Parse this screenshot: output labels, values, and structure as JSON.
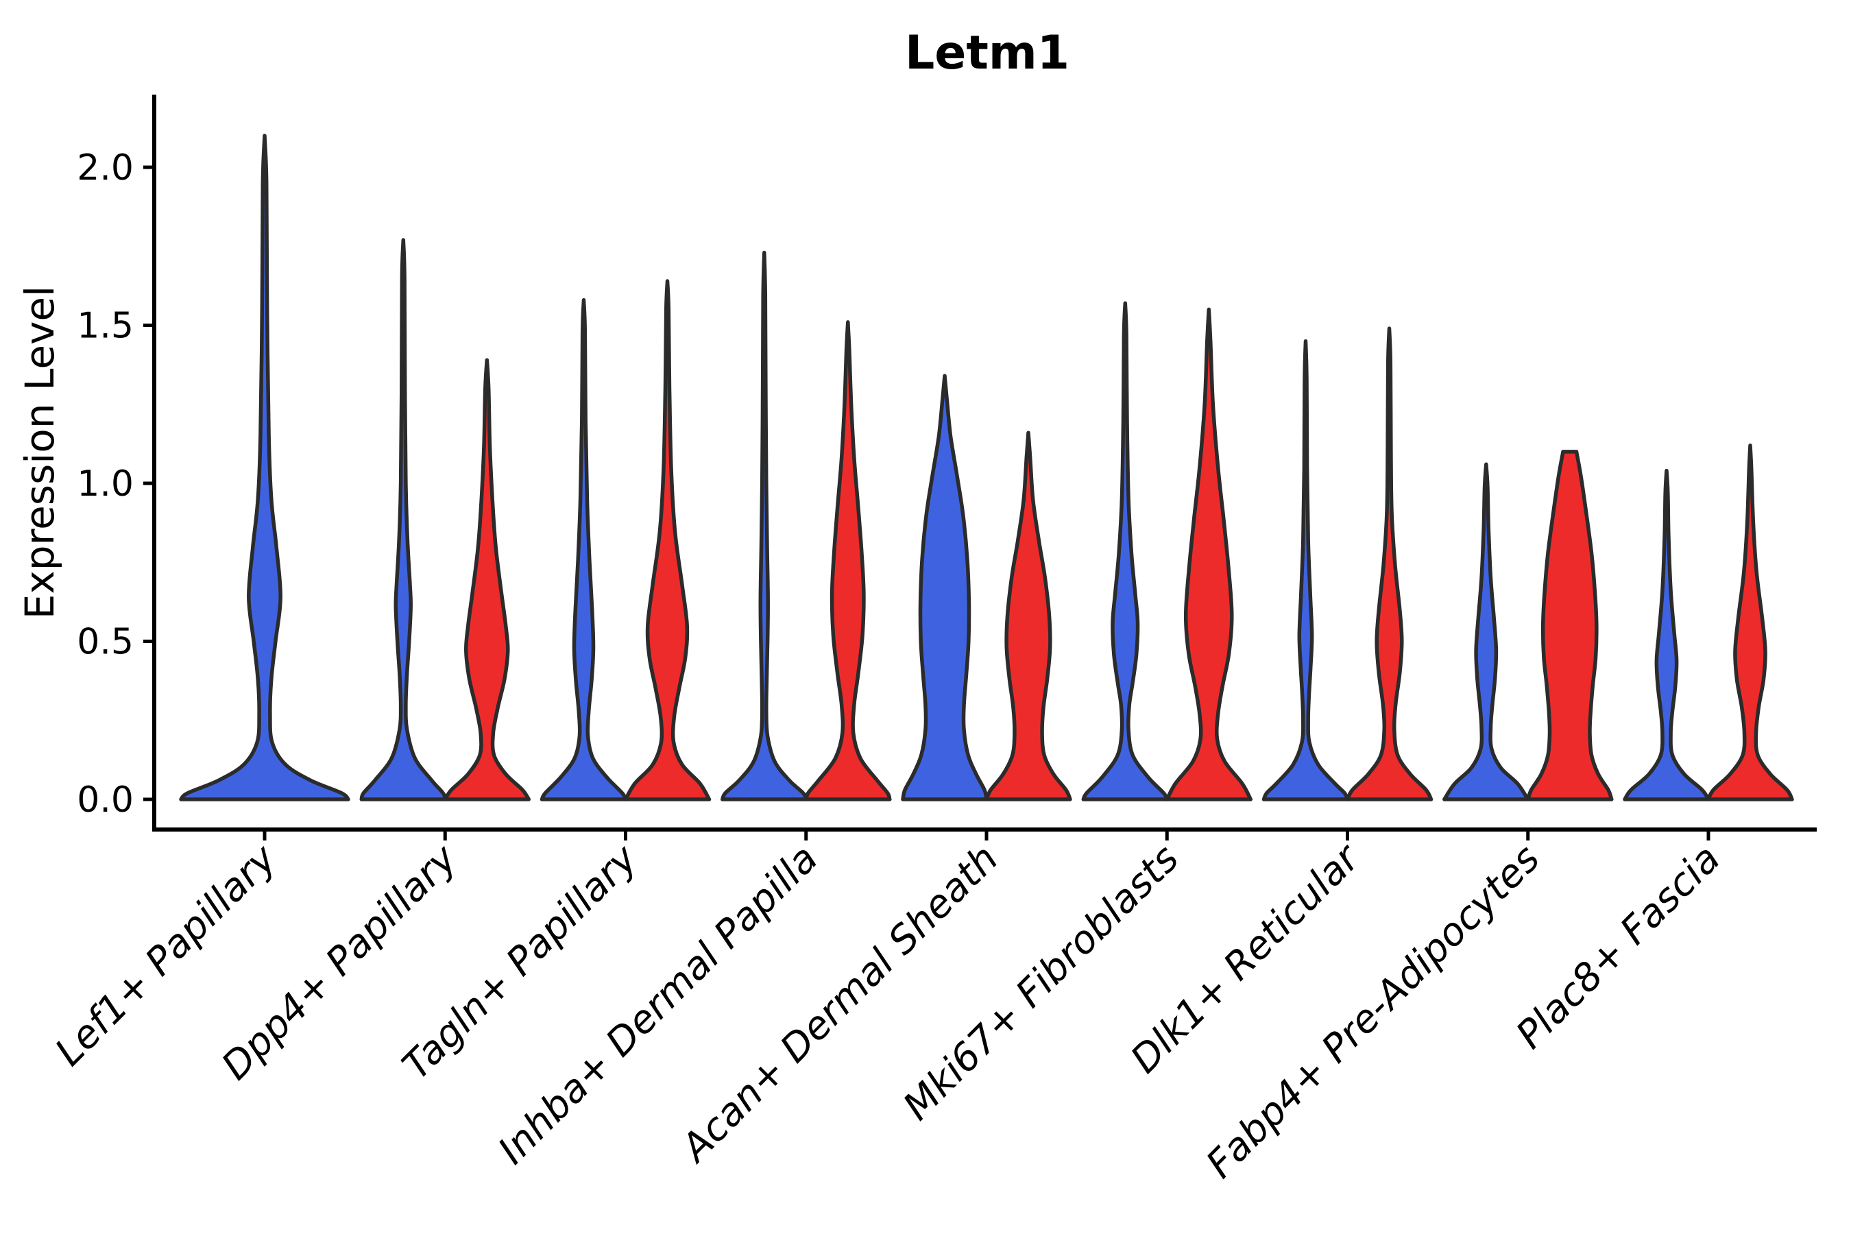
{
  "title": "Letm1",
  "y_axis": {
    "label": "Expression Level",
    "ticks": [
      "0.0",
      "0.5",
      "1.0",
      "1.5",
      "2.0"
    ],
    "tick_values": [
      0.0,
      0.5,
      1.0,
      1.5,
      2.0
    ]
  },
  "x_axis": {
    "categories": [
      "Lef1+ Papillary",
      "Dpp4+ Papillary",
      "Tagln+ Papillary",
      "Inhba+ Dermal Papilla",
      "Acan+ Dermal Sheath",
      "Mki67+ Fibroblasts",
      "Dlk1+ Reticular",
      "Fabp4+ Pre-Adipocytes",
      "Plac8+ Fascia"
    ]
  },
  "colors": {
    "group_blue": "#3F63E0",
    "group_red": "#EE2B2B",
    "violin_outline": "#2B2B2B",
    "axis": "#000000",
    "background": "#FFFFFF"
  },
  "chart_data": {
    "type": "violin",
    "title": "Letm1",
    "xlabel": "",
    "ylabel": "Expression Level",
    "ylim": [
      0,
      2.2
    ],
    "grid": false,
    "legend": "none",
    "categories": [
      "Lef1+ Papillary",
      "Dpp4+ Papillary",
      "Tagln+ Papillary",
      "Inhba+ Dermal Papilla",
      "Acan+ Dermal Sheath",
      "Mki67+ Fibroblasts",
      "Dlk1+ Reticular",
      "Fabp4+ Pre-Adipocytes",
      "Plac8+ Fascia"
    ],
    "groups": [
      "blue",
      "red"
    ],
    "note": "Split violin plot; each category has a blue (left) and red (right) density. Lef1+ Papillary shows a single full-width blue violin. width_profile = [expression_value, relative_half_width] pairs from tip to base; all densities peak in width at expression 0.",
    "violins": [
      {
        "category": "Lef1+ Papillary",
        "cat_index": 0,
        "group": "blue",
        "side": "center",
        "max_expression": 2.1,
        "width_profile": [
          [
            2.1,
            0
          ],
          [
            1.95,
            0.022
          ],
          [
            1.55,
            0.03
          ],
          [
            1.15,
            0.05
          ],
          [
            0.95,
            0.08
          ],
          [
            0.8,
            0.14
          ],
          [
            0.64,
            0.19
          ],
          [
            0.5,
            0.13
          ],
          [
            0.38,
            0.08
          ],
          [
            0.27,
            0.065
          ],
          [
            0.18,
            0.09
          ],
          [
            0.11,
            0.25
          ],
          [
            0.06,
            0.55
          ],
          [
            0.02,
            0.92
          ],
          [
            0,
            1
          ]
        ]
      },
      {
        "category": "Dpp4+ Papillary",
        "cat_index": 1,
        "group": "blue",
        "side": "left",
        "max_expression": 1.77,
        "width_profile": [
          [
            1.77,
            0
          ],
          [
            1.65,
            0.03
          ],
          [
            1.3,
            0.04
          ],
          [
            1.0,
            0.06
          ],
          [
            0.82,
            0.1
          ],
          [
            0.68,
            0.16
          ],
          [
            0.61,
            0.18
          ],
          [
            0.5,
            0.14
          ],
          [
            0.4,
            0.09
          ],
          [
            0.3,
            0.06
          ],
          [
            0.22,
            0.09
          ],
          [
            0.13,
            0.28
          ],
          [
            0.06,
            0.68
          ],
          [
            0.02,
            0.95
          ],
          [
            0,
            1
          ]
        ]
      },
      {
        "category": "Dpp4+ Papillary",
        "cat_index": 1,
        "group": "red",
        "side": "right",
        "max_expression": 1.39,
        "width_profile": [
          [
            1.39,
            0
          ],
          [
            1.3,
            0.04
          ],
          [
            1.12,
            0.07
          ],
          [
            0.95,
            0.13
          ],
          [
            0.8,
            0.21
          ],
          [
            0.66,
            0.34
          ],
          [
            0.55,
            0.45
          ],
          [
            0.47,
            0.5
          ],
          [
            0.38,
            0.42
          ],
          [
            0.29,
            0.26
          ],
          [
            0.21,
            0.15
          ],
          [
            0.14,
            0.17
          ],
          [
            0.08,
            0.45
          ],
          [
            0.03,
            0.85
          ],
          [
            0,
            1
          ]
        ]
      },
      {
        "category": "Tagln+ Papillary",
        "cat_index": 2,
        "group": "blue",
        "side": "left",
        "max_expression": 1.58,
        "width_profile": [
          [
            1.58,
            0
          ],
          [
            1.48,
            0.03
          ],
          [
            1.2,
            0.045
          ],
          [
            0.95,
            0.08
          ],
          [
            0.75,
            0.14
          ],
          [
            0.6,
            0.2
          ],
          [
            0.48,
            0.23
          ],
          [
            0.38,
            0.19
          ],
          [
            0.28,
            0.12
          ],
          [
            0.2,
            0.1
          ],
          [
            0.13,
            0.22
          ],
          [
            0.07,
            0.55
          ],
          [
            0.02,
            0.92
          ],
          [
            0,
            1
          ]
        ]
      },
      {
        "category": "Tagln+ Papillary",
        "cat_index": 2,
        "group": "red",
        "side": "right",
        "max_expression": 1.64,
        "width_profile": [
          [
            1.64,
            0
          ],
          [
            1.55,
            0.03
          ],
          [
            1.3,
            0.05
          ],
          [
            1.05,
            0.09
          ],
          [
            0.85,
            0.18
          ],
          [
            0.68,
            0.35
          ],
          [
            0.55,
            0.47
          ],
          [
            0.45,
            0.43
          ],
          [
            0.35,
            0.28
          ],
          [
            0.26,
            0.16
          ],
          [
            0.18,
            0.15
          ],
          [
            0.11,
            0.35
          ],
          [
            0.05,
            0.78
          ],
          [
            0,
            1
          ]
        ]
      },
      {
        "category": "Inhba+ Dermal Papilla",
        "cat_index": 3,
        "group": "blue",
        "side": "left",
        "max_expression": 1.73,
        "width_profile": [
          [
            1.73,
            0
          ],
          [
            1.6,
            0.025
          ],
          [
            1.3,
            0.035
          ],
          [
            1.0,
            0.05
          ],
          [
            0.8,
            0.07
          ],
          [
            0.63,
            0.09
          ],
          [
            0.5,
            0.08
          ],
          [
            0.38,
            0.06
          ],
          [
            0.28,
            0.05
          ],
          [
            0.2,
            0.08
          ],
          [
            0.12,
            0.25
          ],
          [
            0.06,
            0.6
          ],
          [
            0.02,
            0.93
          ],
          [
            0,
            1
          ]
        ]
      },
      {
        "category": "Inhba+ Dermal Papilla",
        "cat_index": 3,
        "group": "red",
        "side": "right",
        "max_expression": 1.51,
        "width_profile": [
          [
            1.51,
            0
          ],
          [
            1.42,
            0.035
          ],
          [
            1.25,
            0.08
          ],
          [
            1.08,
            0.15
          ],
          [
            0.92,
            0.25
          ],
          [
            0.78,
            0.33
          ],
          [
            0.65,
            0.38
          ],
          [
            0.52,
            0.35
          ],
          [
            0.4,
            0.25
          ],
          [
            0.3,
            0.15
          ],
          [
            0.21,
            0.13
          ],
          [
            0.13,
            0.3
          ],
          [
            0.06,
            0.7
          ],
          [
            0.02,
            0.95
          ],
          [
            0,
            1
          ]
        ]
      },
      {
        "category": "Acan+ Dermal Sheath",
        "cat_index": 4,
        "group": "blue",
        "side": "left",
        "max_expression": 1.34,
        "width_profile": [
          [
            1.34,
            0
          ],
          [
            1.27,
            0.05
          ],
          [
            1.15,
            0.14
          ],
          [
            1.02,
            0.3
          ],
          [
            0.9,
            0.44
          ],
          [
            0.76,
            0.54
          ],
          [
            0.62,
            0.58
          ],
          [
            0.5,
            0.57
          ],
          [
            0.4,
            0.52
          ],
          [
            0.3,
            0.46
          ],
          [
            0.22,
            0.46
          ],
          [
            0.14,
            0.56
          ],
          [
            0.08,
            0.75
          ],
          [
            0.03,
            0.95
          ],
          [
            0,
            1
          ]
        ]
      },
      {
        "category": "Acan+ Dermal Sheath",
        "cat_index": 4,
        "group": "red",
        "side": "right",
        "max_expression": 1.16,
        "width_profile": [
          [
            1.16,
            0
          ],
          [
            1.09,
            0.04
          ],
          [
            0.95,
            0.11
          ],
          [
            0.82,
            0.25
          ],
          [
            0.7,
            0.4
          ],
          [
            0.58,
            0.5
          ],
          [
            0.48,
            0.52
          ],
          [
            0.38,
            0.45
          ],
          [
            0.29,
            0.36
          ],
          [
            0.21,
            0.33
          ],
          [
            0.14,
            0.38
          ],
          [
            0.08,
            0.6
          ],
          [
            0.03,
            0.9
          ],
          [
            0,
            1
          ]
        ]
      },
      {
        "category": "Mki67+ Fibroblasts",
        "cat_index": 5,
        "group": "blue",
        "side": "left",
        "max_expression": 1.57,
        "width_profile": [
          [
            1.57,
            0
          ],
          [
            1.47,
            0.03
          ],
          [
            1.2,
            0.045
          ],
          [
            0.95,
            0.08
          ],
          [
            0.78,
            0.15
          ],
          [
            0.65,
            0.24
          ],
          [
            0.56,
            0.3
          ],
          [
            0.46,
            0.27
          ],
          [
            0.37,
            0.18
          ],
          [
            0.3,
            0.1
          ],
          [
            0.22,
            0.08
          ],
          [
            0.14,
            0.18
          ],
          [
            0.07,
            0.55
          ],
          [
            0.02,
            0.92
          ],
          [
            0,
            1
          ]
        ]
      },
      {
        "category": "Mki67+ Fibroblasts",
        "cat_index": 5,
        "group": "red",
        "side": "right",
        "max_expression": 1.55,
        "width_profile": [
          [
            1.55,
            0
          ],
          [
            1.45,
            0.04
          ],
          [
            1.25,
            0.1
          ],
          [
            1.05,
            0.22
          ],
          [
            0.88,
            0.36
          ],
          [
            0.72,
            0.48
          ],
          [
            0.58,
            0.55
          ],
          [
            0.46,
            0.48
          ],
          [
            0.36,
            0.33
          ],
          [
            0.27,
            0.22
          ],
          [
            0.19,
            0.2
          ],
          [
            0.12,
            0.38
          ],
          [
            0.05,
            0.8
          ],
          [
            0,
            1
          ]
        ]
      },
      {
        "category": "Dlk1+ Reticular",
        "cat_index": 6,
        "group": "blue",
        "side": "left",
        "max_expression": 1.45,
        "width_profile": [
          [
            1.45,
            0
          ],
          [
            1.33,
            0.025
          ],
          [
            1.05,
            0.035
          ],
          [
            0.82,
            0.06
          ],
          [
            0.65,
            0.11
          ],
          [
            0.52,
            0.15
          ],
          [
            0.42,
            0.12
          ],
          [
            0.33,
            0.08
          ],
          [
            0.25,
            0.06
          ],
          [
            0.18,
            0.09
          ],
          [
            0.11,
            0.3
          ],
          [
            0.05,
            0.7
          ],
          [
            0.02,
            0.93
          ],
          [
            0,
            1
          ]
        ]
      },
      {
        "category": "Dlk1+ Reticular",
        "cat_index": 6,
        "group": "red",
        "side": "right",
        "max_expression": 1.49,
        "width_profile": [
          [
            1.49,
            0
          ],
          [
            1.38,
            0.03
          ],
          [
            1.1,
            0.04
          ],
          [
            0.9,
            0.06
          ],
          [
            0.74,
            0.14
          ],
          [
            0.6,
            0.25
          ],
          [
            0.5,
            0.3
          ],
          [
            0.4,
            0.25
          ],
          [
            0.3,
            0.15
          ],
          [
            0.22,
            0.12
          ],
          [
            0.14,
            0.2
          ],
          [
            0.08,
            0.5
          ],
          [
            0.03,
            0.88
          ],
          [
            0,
            1
          ]
        ]
      },
      {
        "category": "Fabp4+ Pre-Adipocytes",
        "cat_index": 7,
        "group": "blue",
        "side": "left",
        "max_expression": 1.06,
        "width_profile": [
          [
            1.06,
            0
          ],
          [
            0.99,
            0.035
          ],
          [
            0.85,
            0.06
          ],
          [
            0.7,
            0.11
          ],
          [
            0.57,
            0.19
          ],
          [
            0.47,
            0.24
          ],
          [
            0.38,
            0.21
          ],
          [
            0.3,
            0.15
          ],
          [
            0.23,
            0.11
          ],
          [
            0.16,
            0.13
          ],
          [
            0.1,
            0.35
          ],
          [
            0.05,
            0.75
          ],
          [
            0,
            1
          ]
        ]
      },
      {
        "category": "Fabp4+ Pre-Adipocytes",
        "cat_index": 7,
        "group": "red",
        "side": "right",
        "max_expression": 1.1,
        "width_profile": [
          [
            1.1,
            0.16
          ],
          [
            1.02,
            0.27
          ],
          [
            0.9,
            0.4
          ],
          [
            0.78,
            0.52
          ],
          [
            0.66,
            0.6
          ],
          [
            0.55,
            0.64
          ],
          [
            0.45,
            0.62
          ],
          [
            0.36,
            0.55
          ],
          [
            0.28,
            0.5
          ],
          [
            0.21,
            0.48
          ],
          [
            0.14,
            0.52
          ],
          [
            0.08,
            0.68
          ],
          [
            0.03,
            0.92
          ],
          [
            0,
            1
          ]
        ]
      },
      {
        "category": "Plac8+ Fascia",
        "cat_index": 8,
        "group": "blue",
        "side": "left",
        "max_expression": 1.04,
        "width_profile": [
          [
            1.04,
            0
          ],
          [
            0.97,
            0.03
          ],
          [
            0.82,
            0.05
          ],
          [
            0.66,
            0.1
          ],
          [
            0.53,
            0.18
          ],
          [
            0.44,
            0.24
          ],
          [
            0.36,
            0.21
          ],
          [
            0.28,
            0.14
          ],
          [
            0.21,
            0.1
          ],
          [
            0.14,
            0.14
          ],
          [
            0.08,
            0.42
          ],
          [
            0.03,
            0.85
          ],
          [
            0,
            1
          ]
        ]
      },
      {
        "category": "Plac8+ Fascia",
        "cat_index": 8,
        "group": "red",
        "side": "right",
        "max_expression": 1.12,
        "width_profile": [
          [
            1.12,
            0
          ],
          [
            1.04,
            0.03
          ],
          [
            0.88,
            0.07
          ],
          [
            0.72,
            0.15
          ],
          [
            0.58,
            0.28
          ],
          [
            0.47,
            0.36
          ],
          [
            0.38,
            0.32
          ],
          [
            0.29,
            0.2
          ],
          [
            0.21,
            0.14
          ],
          [
            0.14,
            0.18
          ],
          [
            0.08,
            0.48
          ],
          [
            0.03,
            0.88
          ],
          [
            0,
            1
          ]
        ]
      }
    ]
  }
}
